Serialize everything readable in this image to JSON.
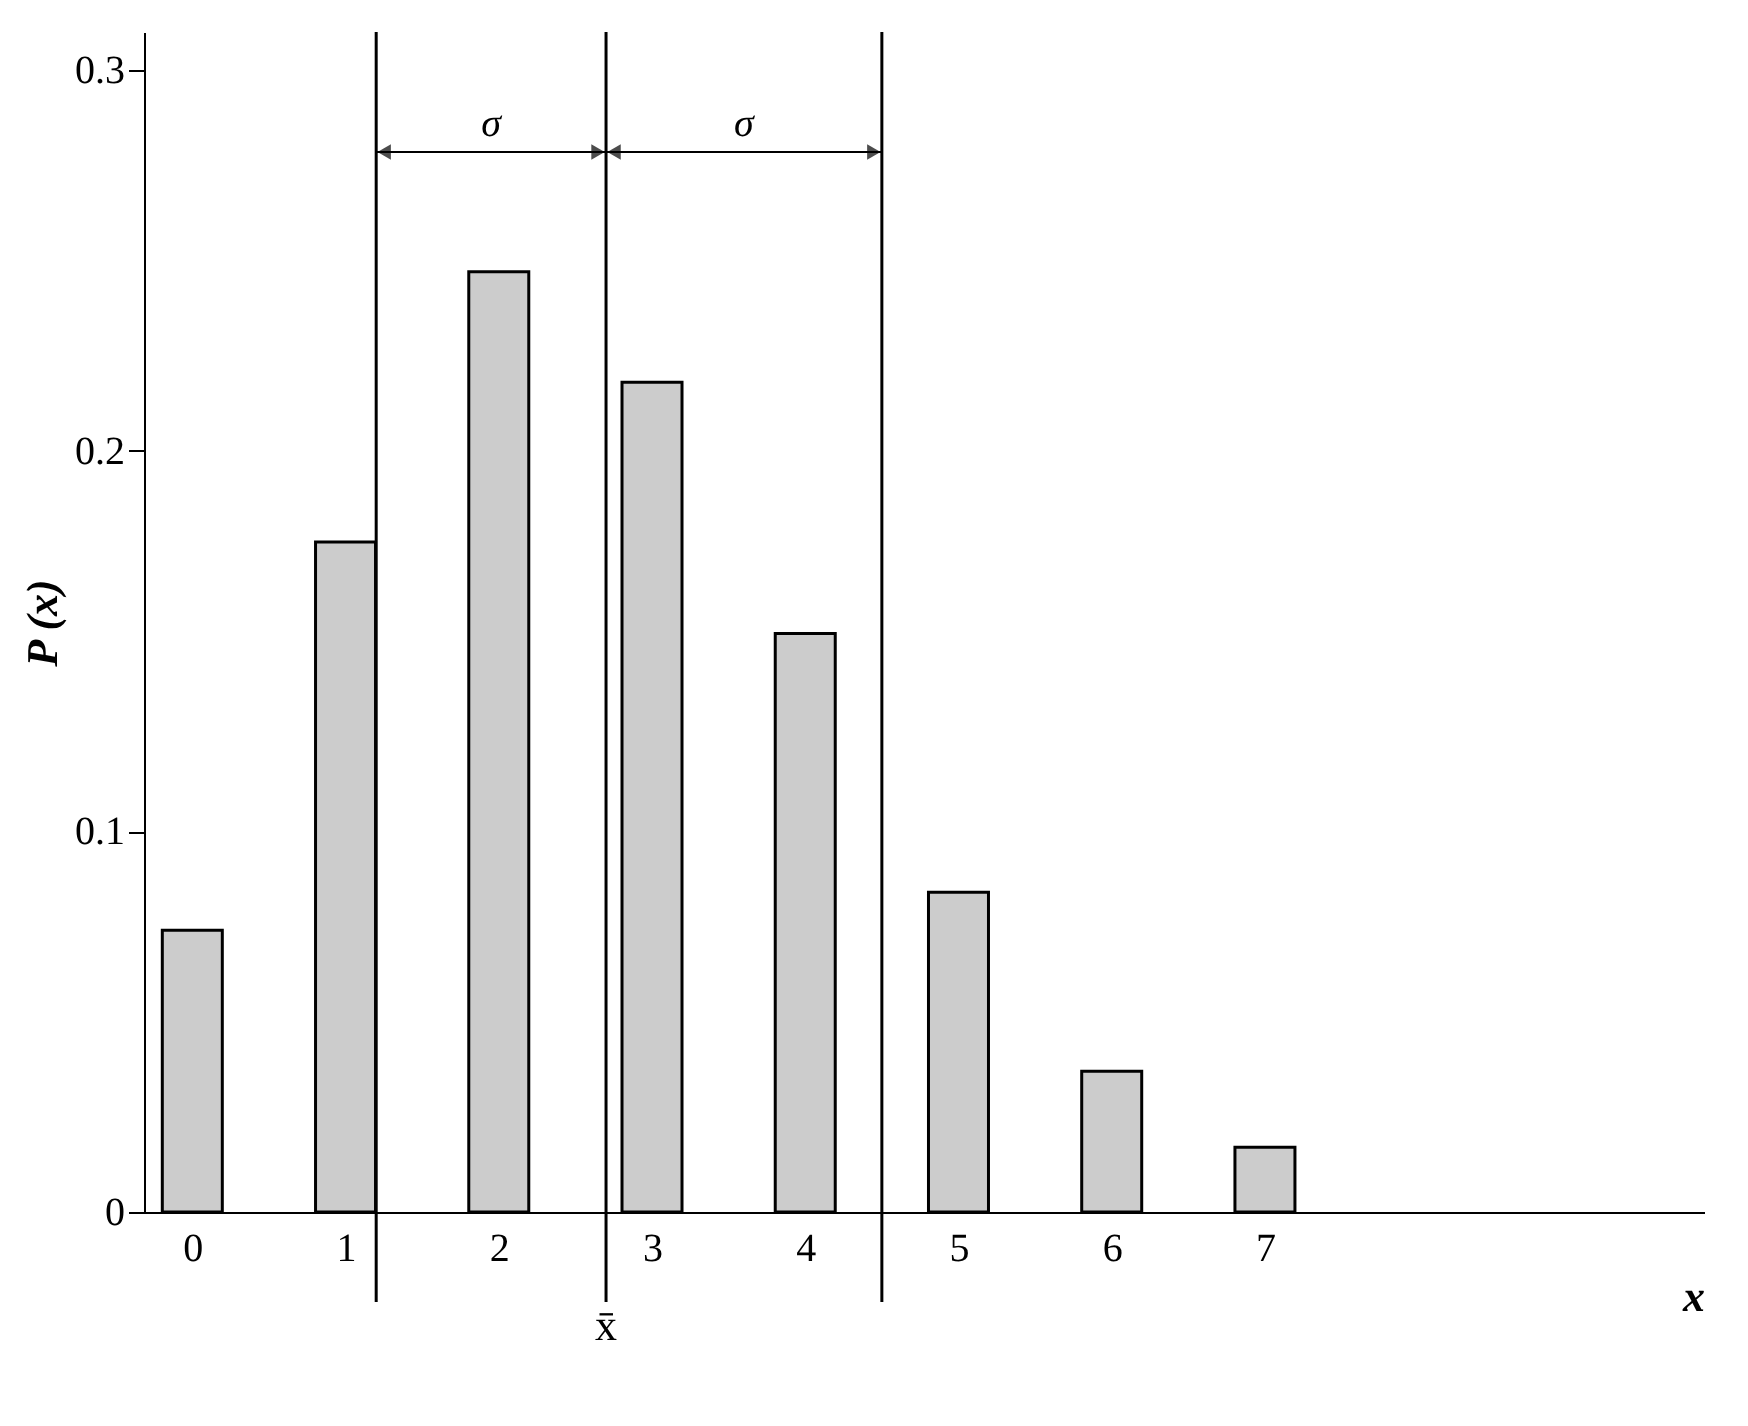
{
  "chart_data": {
    "type": "bar",
    "xlabel": "x",
    "ylabel": "P (x)",
    "x": [
      0,
      1,
      2,
      3,
      4,
      5,
      6,
      7
    ],
    "values": [
      0.074,
      0.176,
      0.247,
      0.218,
      0.152,
      0.084,
      0.037,
      0.017
    ],
    "color": "#cccccc",
    "xlim": [
      -0.25,
      9.8
    ],
    "xticks": [
      0,
      1,
      2,
      3,
      4,
      5,
      6,
      7
    ],
    "ylim": [
      0,
      0.31
    ],
    "yticks": [
      0,
      0.1,
      0.2,
      0.3
    ],
    "grid": false,
    "ref_lines": [
      {
        "axis": "x",
        "value": 1.2,
        "label": null
      },
      {
        "axis": "x",
        "value": 2.7,
        "label": "x̄"
      },
      {
        "axis": "x",
        "value": 4.5,
        "label": null
      }
    ],
    "annotations": [
      "σ",
      "σ"
    ]
  }
}
